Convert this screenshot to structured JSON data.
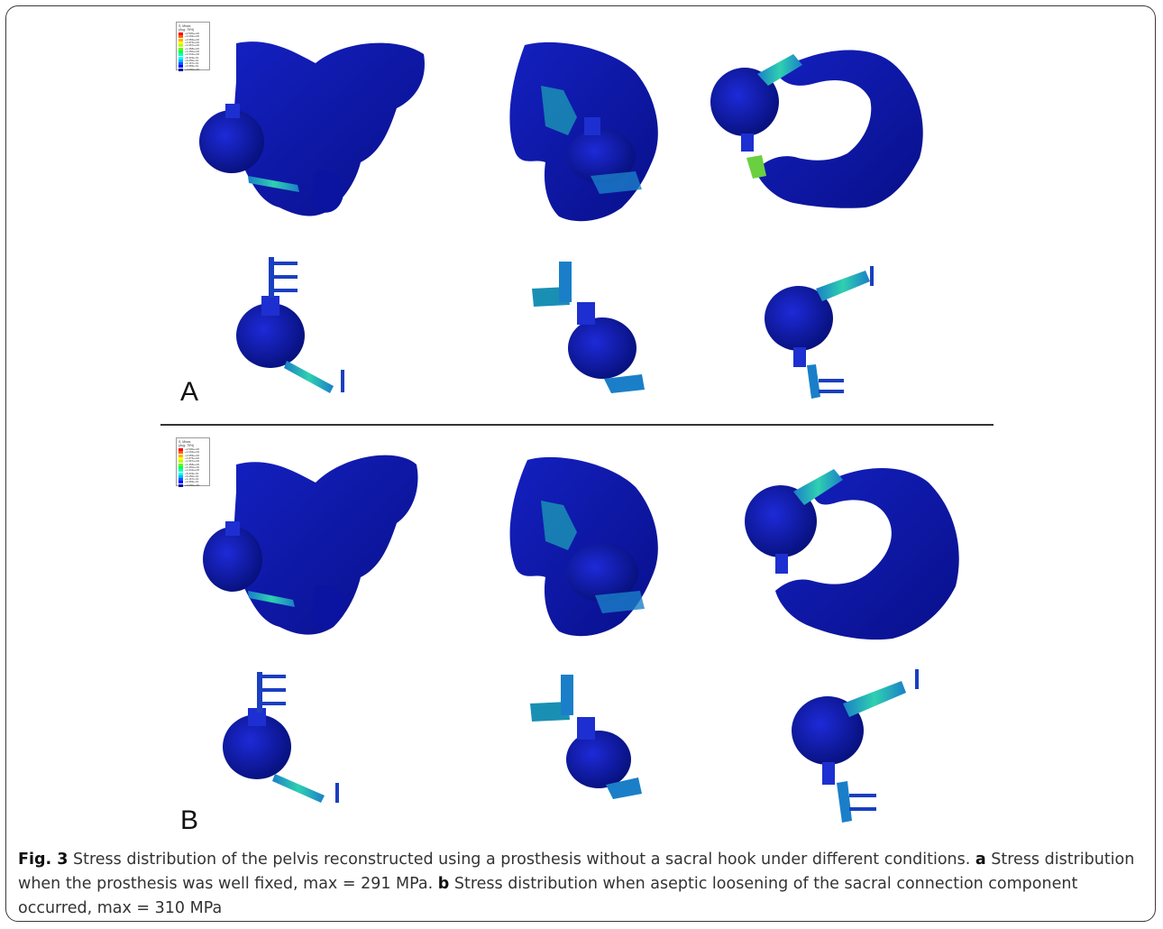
{
  "figure": {
    "panels": [
      {
        "id": "A",
        "label": "A"
      },
      {
        "id": "B",
        "label": "B"
      }
    ],
    "legend": {
      "title_line1": "S, Mises",
      "title_line2": "(Avg: 75%)",
      "colors": [
        "#ff0000",
        "#ff5a00",
        "#ffb400",
        "#ffff00",
        "#b4ff00",
        "#5aff00",
        "#00ff5a",
        "#00ffb4",
        "#00ffff",
        "#00b4ff",
        "#005aff",
        "#0000ff",
        "#0000b4"
      ],
      "values_A": [
        "+2.500e+00",
        "+2.292e+00",
        "+2.083e+00",
        "+1.875e+00",
        "+1.667e+00",
        "+1.458e+00",
        "+1.250e+00",
        "+1.042e+00",
        "+8.333e-01",
        "+6.250e-01",
        "+4.167e-01",
        "+2.083e-01",
        "+0.000e+00"
      ],
      "values_B": [
        "+2.500e+00",
        "+2.292e+00",
        "+2.083e+00",
        "+1.875e+00",
        "+1.667e+00",
        "+1.458e+00",
        "+1.250e+00",
        "+1.042e+00",
        "+8.333e-01",
        "+6.250e-01",
        "+4.167e-01",
        "+2.083e-01",
        "+0.000e+00"
      ]
    },
    "colors": {
      "bone": "#0a14a0",
      "bone_dark": "#060c70",
      "prosthesis_stress": "#22b4a0",
      "hot": "#e0e000"
    }
  },
  "caption": {
    "fig_label": "Fig. 3",
    "text": " Stress distribution of the pelvis reconstructed using a prosthesis without a sacral hook under different conditions. ",
    "a_label": "a",
    "a_text": " Stress distribution when the prosthesis was well fixed, max = 291 MPa. ",
    "b_label": "b",
    "b_text": " Stress distribution when aseptic loosening of the sacral connection component occurred, max = 310 MPa"
  }
}
